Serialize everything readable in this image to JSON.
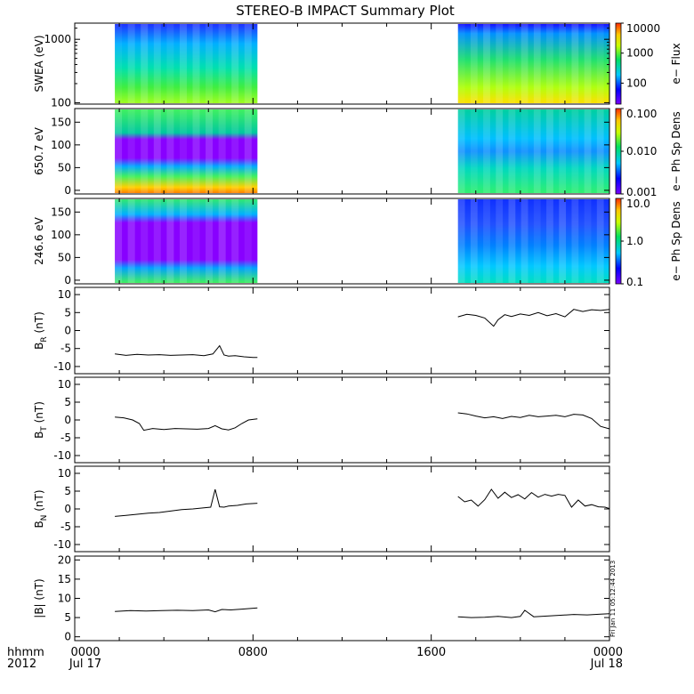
{
  "title": "STEREO-B IMPACT Summary Plot",
  "timestamp": "Fri Jan 11 05:12:44 2013",
  "time_axis": {
    "label_line1": "hhmm",
    "label_line2": "2012",
    "ticks": [
      {
        "hour": 0,
        "line1": "0000",
        "line2": "Jul 17"
      },
      {
        "hour": 8,
        "line1": "0800",
        "line2": ""
      },
      {
        "hour": 16,
        "line1": "1600",
        "line2": ""
      },
      {
        "hour": 24,
        "line1": "0000",
        "line2": "Jul 18"
      }
    ],
    "range_hours": [
      0,
      24
    ]
  },
  "chart_data": [
    {
      "type": "heatmap",
      "id": "swea",
      "ylabel": "SWEA (eV)",
      "ylog": true,
      "ylim": [
        95,
        1800
      ],
      "yticks": [
        100,
        1000
      ],
      "yticklabels": [
        "100",
        "1000"
      ],
      "colorbar": {
        "label": "e− Flux",
        "log": true,
        "range": [
          20,
          10000
        ],
        "ticks": [
          100,
          1000,
          10000
        ],
        "ticklabels": [
          "100",
          "1000",
          "10000"
        ]
      },
      "data_intervals_hours": [
        [
          1.8,
          8.2
        ],
        [
          17.2,
          24.0
        ]
      ]
    },
    {
      "type": "heatmap",
      "id": "pad650",
      "ylabel": "650.7 eV",
      "ylim": [
        -8,
        180
      ],
      "yticks": [
        0,
        50,
        100,
        150
      ],
      "yticklabels": [
        "0",
        "50",
        "100",
        "150"
      ],
      "colorbar": {
        "label": "e− Ph Sp Dens",
        "log": true,
        "range": [
          0.001,
          0.1
        ],
        "ticks": [
          0.001,
          0.01,
          0.1
        ],
        "ticklabels": [
          "0.001",
          "0.010",
          "0.100"
        ]
      },
      "data_intervals_hours": [
        [
          1.8,
          8.2
        ],
        [
          17.2,
          24.0
        ]
      ]
    },
    {
      "type": "heatmap",
      "id": "pad246",
      "ylabel": "246.6 eV",
      "ylim": [
        -8,
        180
      ],
      "yticks": [
        0,
        50,
        100,
        150
      ],
      "yticklabels": [
        "0",
        "50",
        "100",
        "150"
      ],
      "colorbar": {
        "label": "e− Ph Sp Dens",
        "log": true,
        "range": [
          0.1,
          10.0
        ],
        "ticks": [
          0.1,
          1.0,
          10.0
        ],
        "ticklabels": [
          "0.1",
          "1.0",
          "10.0"
        ]
      },
      "data_intervals_hours": [
        [
          1.8,
          8.2
        ],
        [
          17.2,
          24.0
        ]
      ]
    },
    {
      "type": "line",
      "id": "br",
      "ylabel": "B",
      "ysub": "R",
      "yunit": " (nT)",
      "ylim": [
        -12,
        12
      ],
      "yticks": [
        -10,
        -5,
        0,
        5,
        10
      ],
      "series": [
        {
          "x": [
            1.8,
            2.3,
            2.8,
            3.3,
            3.8,
            4.3,
            4.8,
            5.3,
            5.8,
            6.2,
            6.5,
            6.7,
            6.9,
            7.2,
            7.6,
            8.0,
            8.2
          ],
          "y": [
            -6.5,
            -6.9,
            -6.6,
            -6.8,
            -6.7,
            -6.9,
            -6.8,
            -6.7,
            -7.0,
            -6.5,
            -4.2,
            -6.8,
            -7.1,
            -7.0,
            -7.3,
            -7.5,
            -7.5
          ]
        },
        {
          "x": [
            17.2,
            17.6,
            18.0,
            18.4,
            18.8,
            19.0,
            19.3,
            19.6,
            20.0,
            20.4,
            20.8,
            21.2,
            21.6,
            22.0,
            22.4,
            22.8,
            23.2,
            23.6,
            24.0
          ],
          "y": [
            3.8,
            4.5,
            4.2,
            3.5,
            1.2,
            3.0,
            4.4,
            3.9,
            4.6,
            4.2,
            5.0,
            4.1,
            4.7,
            3.8,
            5.9,
            5.3,
            5.8,
            5.6,
            5.9
          ]
        }
      ]
    },
    {
      "type": "line",
      "id": "bt",
      "ylabel": "B",
      "ysub": "T",
      "yunit": " (nT)",
      "ylim": [
        -12,
        12
      ],
      "yticks": [
        -10,
        -5,
        0,
        5,
        10
      ],
      "series": [
        {
          "x": [
            1.8,
            2.2,
            2.6,
            2.9,
            3.1,
            3.5,
            4.0,
            4.5,
            5.0,
            5.5,
            6.0,
            6.3,
            6.6,
            6.9,
            7.2,
            7.5,
            7.8,
            8.2
          ],
          "y": [
            0.8,
            0.6,
            0.0,
            -1.0,
            -2.9,
            -2.4,
            -2.7,
            -2.4,
            -2.5,
            -2.6,
            -2.4,
            -1.6,
            -2.5,
            -2.8,
            -2.2,
            -1.0,
            0.0,
            0.3
          ]
        },
        {
          "x": [
            17.2,
            17.6,
            18.0,
            18.4,
            18.8,
            19.2,
            19.6,
            20.0,
            20.4,
            20.8,
            21.2,
            21.6,
            22.0,
            22.4,
            22.8,
            23.2,
            23.6,
            24.0
          ],
          "y": [
            2.0,
            1.7,
            1.1,
            0.6,
            0.9,
            0.4,
            1.0,
            0.7,
            1.3,
            0.9,
            1.1,
            1.3,
            0.9,
            1.6,
            1.4,
            0.4,
            -1.8,
            -2.5
          ]
        }
      ]
    },
    {
      "type": "line",
      "id": "bn",
      "ylabel": "B",
      "ysub": "N",
      "yunit": " (nT)",
      "ylim": [
        -12,
        12
      ],
      "yticks": [
        -10,
        -5,
        0,
        5,
        10
      ],
      "series": [
        {
          "x": [
            1.8,
            2.3,
            2.8,
            3.3,
            3.8,
            4.3,
            4.8,
            5.3,
            5.8,
            6.1,
            6.3,
            6.5,
            6.7,
            6.9,
            7.3,
            7.7,
            8.2
          ],
          "y": [
            -2.1,
            -1.8,
            -1.5,
            -1.2,
            -1.0,
            -0.6,
            -0.2,
            0.0,
            0.3,
            0.5,
            5.5,
            0.6,
            0.5,
            0.8,
            1.0,
            1.4,
            1.6
          ]
        },
        {
          "x": [
            17.2,
            17.5,
            17.8,
            18.1,
            18.4,
            18.7,
            19.0,
            19.3,
            19.6,
            19.9,
            20.2,
            20.5,
            20.8,
            21.1,
            21.4,
            21.7,
            22.0,
            22.3,
            22.6,
            22.9,
            23.2,
            23.5,
            23.8,
            24.0
          ],
          "y": [
            3.5,
            2.0,
            2.5,
            0.8,
            2.6,
            5.5,
            3.0,
            4.7,
            3.2,
            4.0,
            2.8,
            4.6,
            3.3,
            4.1,
            3.6,
            4.1,
            3.8,
            0.5,
            2.5,
            0.8,
            1.2,
            0.6,
            0.5,
            0.1
          ]
        }
      ]
    },
    {
      "type": "line",
      "id": "bmag",
      "ylabel": "|B| (nT)",
      "ylim": [
        -1,
        21
      ],
      "yticks": [
        0,
        5,
        10,
        15,
        20
      ],
      "series": [
        {
          "x": [
            1.8,
            2.5,
            3.2,
            3.9,
            4.6,
            5.3,
            6.0,
            6.3,
            6.6,
            7.0,
            7.5,
            8.2
          ],
          "y": [
            6.6,
            6.8,
            6.7,
            6.8,
            6.9,
            6.8,
            7.0,
            6.5,
            7.1,
            7.0,
            7.2,
            7.5
          ]
        },
        {
          "x": [
            17.2,
            17.8,
            18.4,
            19.0,
            19.6,
            20.0,
            20.2,
            20.6,
            21.2,
            21.8,
            22.4,
            23.0,
            23.6,
            24.0
          ],
          "y": [
            5.2,
            5.0,
            5.1,
            5.3,
            5.0,
            5.3,
            6.9,
            5.2,
            5.4,
            5.6,
            5.8,
            5.7,
            5.9,
            6.0
          ]
        }
      ]
    }
  ]
}
